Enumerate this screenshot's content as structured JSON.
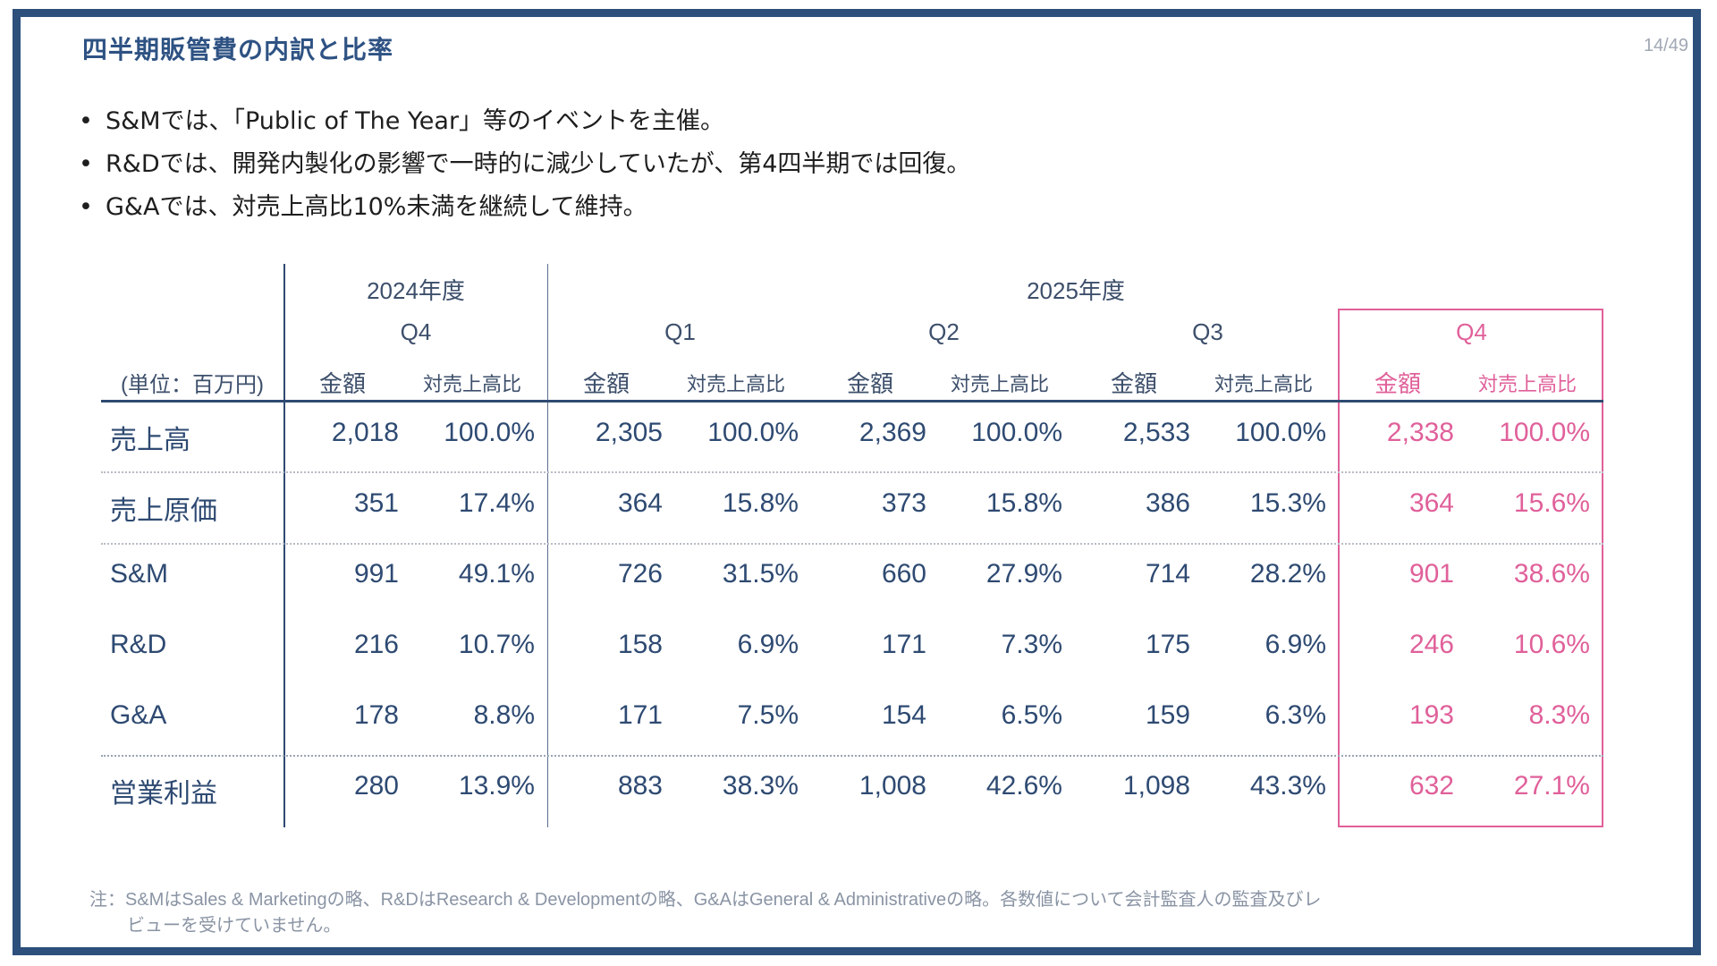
{
  "slide": {
    "title": "四半期販管費の内訳と比率",
    "page_number": "14/49"
  },
  "bullets": [
    "S&Mでは、「Public of The Year」等のイベントを主催。",
    "R&Dでは、開発内製化の影響で一時的に減少していたが、第4四半期では回復。",
    "G&Aでは、対売上高比10%未満を継続して維持。"
  ],
  "table": {
    "unit_label": "(単位：百万円)",
    "years": [
      "2024年度",
      "2025年度"
    ],
    "quarters": [
      "Q4",
      "Q1",
      "Q2",
      "Q3",
      "Q4"
    ],
    "sub_headers": {
      "amount": "金額",
      "ratio": "対売上高比"
    },
    "rows": [
      {
        "label": "売上高",
        "values": [
          [
            "2,018",
            "100.0%"
          ],
          [
            "2,305",
            "100.0%"
          ],
          [
            "2,369",
            "100.0%"
          ],
          [
            "2,533",
            "100.0%"
          ],
          [
            "2,338",
            "100.0%"
          ]
        ]
      },
      {
        "label": "売上原価",
        "values": [
          [
            "351",
            "17.4%"
          ],
          [
            "364",
            "15.8%"
          ],
          [
            "373",
            "15.8%"
          ],
          [
            "386",
            "15.3%"
          ],
          [
            "364",
            "15.6%"
          ]
        ]
      },
      {
        "label": "S&M",
        "values": [
          [
            "991",
            "49.1%"
          ],
          [
            "726",
            "31.5%"
          ],
          [
            "660",
            "27.9%"
          ],
          [
            "714",
            "28.2%"
          ],
          [
            "901",
            "38.6%"
          ]
        ]
      },
      {
        "label": "R&D",
        "values": [
          [
            "216",
            "10.7%"
          ],
          [
            "158",
            "6.9%"
          ],
          [
            "171",
            "7.3%"
          ],
          [
            "175",
            "6.9%"
          ],
          [
            "246",
            "10.6%"
          ]
        ]
      },
      {
        "label": "G&A",
        "values": [
          [
            "178",
            "8.8%"
          ],
          [
            "171",
            "7.5%"
          ],
          [
            "154",
            "6.5%"
          ],
          [
            "159",
            "6.3%"
          ],
          [
            "193",
            "8.3%"
          ]
        ]
      },
      {
        "label": "営業利益",
        "values": [
          [
            "280",
            "13.9%"
          ],
          [
            "883",
            "38.3%"
          ],
          [
            "1,008",
            "42.6%"
          ],
          [
            "1,098",
            "43.3%"
          ],
          [
            "632",
            "27.1%"
          ]
        ]
      }
    ],
    "highlight_column": "2025年度 Q4",
    "colors": {
      "text": "#2e4a72",
      "highlight": "#e0609a",
      "frame": "#2c4f7c",
      "title": "#2e5283"
    }
  },
  "footnote": {
    "line1": "注：S&MはSales & Marketingの略、R&DはResearch & Developmentの略、G&AはGeneral & Administrativeの略。各数値について会計監査人の監査及びレ",
    "line2": "ビューを受けていません。"
  }
}
